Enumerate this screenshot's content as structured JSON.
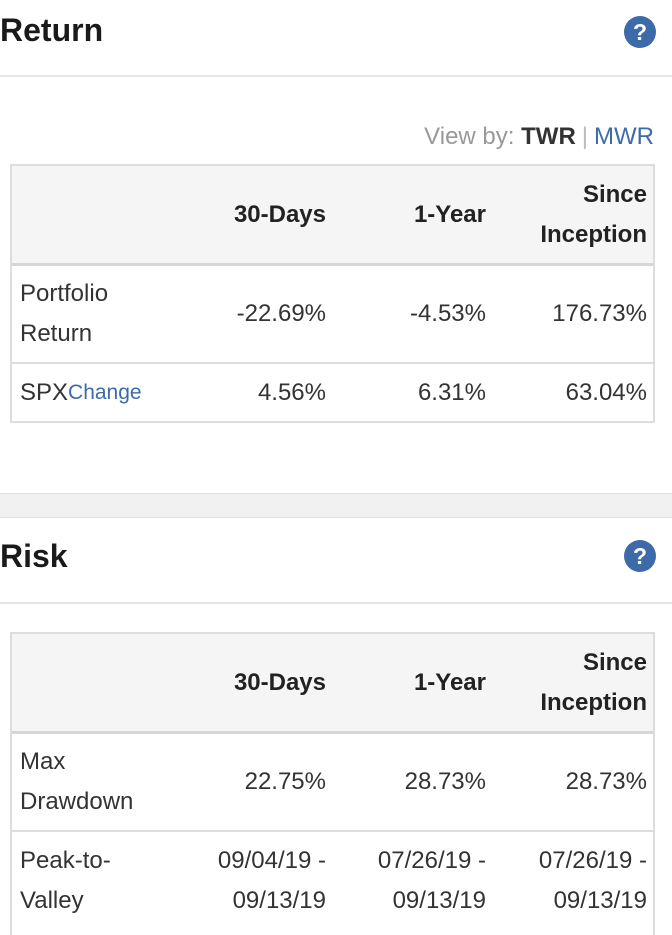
{
  "return_section": {
    "title": "Return",
    "help_icon": "question-circle-icon",
    "view_by": {
      "label": "View by:",
      "active": "TWR",
      "separator": "|",
      "other": "MWR"
    },
    "columns": [
      "30-Days",
      "1-Year",
      "Since",
      "Inception"
    ],
    "rows": [
      {
        "label_line1": "Portfolio",
        "label_line2": "Return",
        "values": [
          "-22.69%",
          "-4.53%",
          "176.73%"
        ]
      },
      {
        "label": "SPX",
        "link": "Change",
        "values": [
          "4.56%",
          "6.31%",
          "63.04%"
        ]
      }
    ]
  },
  "risk_section": {
    "title": "Risk",
    "help_icon": "question-circle-icon",
    "columns": [
      "30-Days",
      "1-Year",
      "Since",
      "Inception"
    ],
    "rows": [
      {
        "label_line1": "Max",
        "label_line2": "Drawdown",
        "values": [
          "22.75%",
          "28.73%",
          "28.73%"
        ]
      },
      {
        "label_line1": "Peak-to-",
        "label_line2": "Valley",
        "values": [
          [
            "09/04/19 -",
            "09/13/19"
          ],
          [
            "07/26/19 -",
            "09/13/19"
          ],
          [
            "07/26/19 -",
            "09/13/19"
          ]
        ]
      }
    ]
  },
  "colors": {
    "accent": "#3d6aa8",
    "divider": "#dddddd",
    "header_bg": "#f5f5f5"
  }
}
